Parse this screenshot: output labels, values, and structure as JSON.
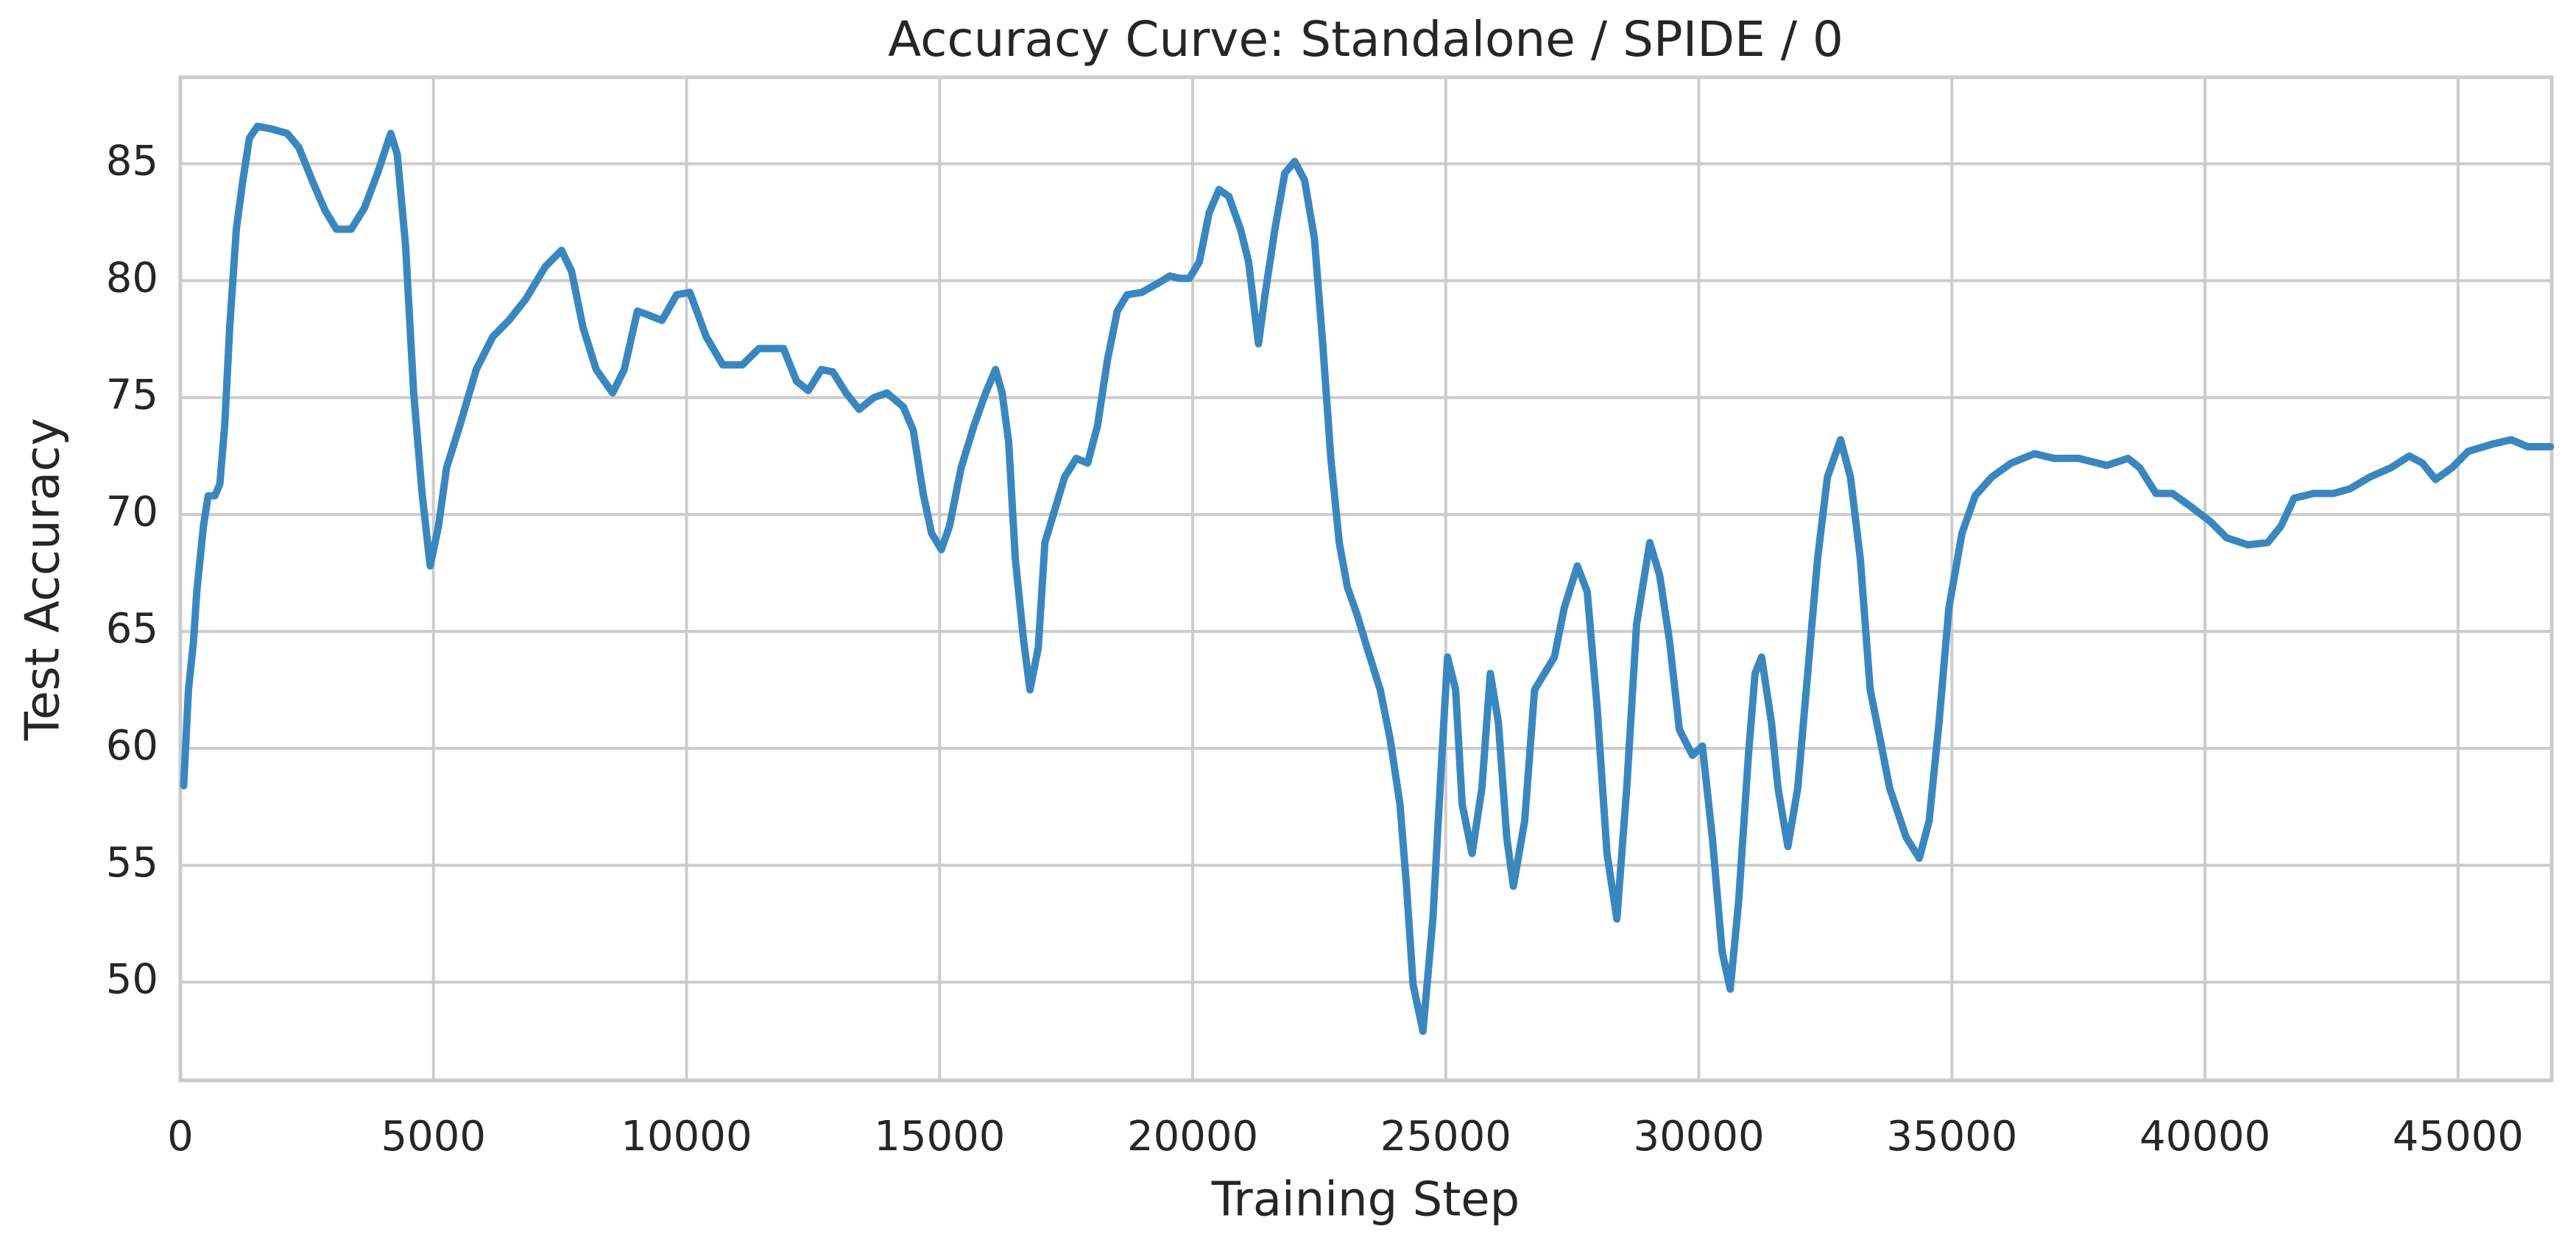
{
  "chart_data": {
    "type": "line",
    "title": "Accuracy Curve: Standalone / SPIDE / 0",
    "x_label": "Training Step",
    "y_label": "Test Accuracy",
    "grid": true,
    "xlim": [
      0,
      46850
    ],
    "ylim": [
      45.8,
      88.7
    ],
    "xticks": [
      0,
      5000,
      10000,
      15000,
      20000,
      25000,
      30000,
      35000,
      40000,
      45000
    ],
    "yticks": [
      50,
      55,
      60,
      65,
      70,
      75,
      80,
      85
    ],
    "series": [
      {
        "color": "#3a87c0",
        "x": [
          65,
          160,
          260,
          325,
          455,
          550,
          680,
          780,
          875,
          975,
          1105,
          1235,
          1365,
          1525,
          1785,
          2110,
          2340,
          2600,
          2860,
          3085,
          3375,
          3635,
          3895,
          4155,
          4285,
          4450,
          4610,
          4775,
          4935,
          5100,
          5260,
          5520,
          5845,
          6170,
          6490,
          6820,
          7210,
          7530,
          7730,
          7955,
          8215,
          8540,
          8770,
          9030,
          9285,
          9515,
          9805,
          10065,
          10390,
          10715,
          11105,
          11430,
          11690,
          11915,
          12175,
          12405,
          12665,
          12890,
          13150,
          13410,
          13700,
          13960,
          14285,
          14480,
          14675,
          14840,
          15035,
          15195,
          15425,
          15680,
          15910,
          16105,
          16235,
          16365,
          16495,
          16660,
          16785,
          16950,
          17080,
          17275,
          17470,
          17700,
          17925,
          18120,
          18315,
          18510,
          18705,
          18995,
          19320,
          19550,
          19745,
          19935,
          20130,
          20325,
          20520,
          20715,
          20945,
          21105,
          21300,
          21430,
          21625,
          21820,
          22015,
          22210,
          22405,
          22570,
          22730,
          22895,
          23055,
          23250,
          23445,
          23705,
          23900,
          24095,
          24225,
          24355,
          24550,
          24745,
          24905,
          25035,
          25195,
          25325,
          25520,
          25715,
          25880,
          26040,
          26205,
          26335,
          26560,
          26755,
          26950,
          27145,
          27340,
          27600,
          27795,
          27990,
          28185,
          28380,
          28575,
          28770,
          29030,
          29225,
          29420,
          29615,
          29875,
          30070,
          30265,
          30460,
          30620,
          30785,
          30980,
          31110,
          31240,
          31435,
          31565,
          31760,
          31955,
          32150,
          32345,
          32540,
          32800,
          32995,
          33190,
          33385,
          33580,
          33770,
          34095,
          34355,
          34550,
          34745,
          34940,
          35200,
          35460,
          35785,
          36175,
          36630,
          37020,
          37505,
          38060,
          38480,
          38710,
          39030,
          39355,
          39680,
          40105,
          40430,
          40850,
          41240,
          41500,
          41760,
          42150,
          42540,
          42865,
          43255,
          43675,
          44035,
          44295,
          44555,
          44880,
          45200,
          45660,
          46050,
          46370,
          46825
        ],
        "values": [
          58.4,
          62.5,
          64.6,
          66.7,
          69.5,
          70.8,
          70.8,
          71.3,
          73.8,
          78.0,
          82.2,
          84.3,
          86.1,
          86.6,
          86.5,
          86.3,
          85.7,
          84.3,
          83.0,
          82.2,
          82.2,
          83.1,
          84.6,
          86.3,
          85.4,
          81.5,
          75.2,
          70.9,
          67.8,
          69.5,
          72.0,
          73.8,
          76.2,
          77.6,
          78.3,
          79.2,
          80.6,
          81.3,
          80.4,
          78.0,
          76.2,
          75.2,
          76.2,
          78.7,
          78.5,
          78.3,
          79.4,
          79.5,
          77.6,
          76.4,
          76.4,
          77.1,
          77.1,
          77.1,
          75.7,
          75.3,
          76.2,
          76.1,
          75.2,
          74.5,
          75.0,
          75.2,
          74.6,
          73.6,
          70.9,
          69.2,
          68.5,
          69.5,
          72.0,
          73.8,
          75.2,
          76.2,
          75.2,
          73.1,
          68.1,
          64.6,
          62.5,
          64.3,
          68.8,
          70.2,
          71.6,
          72.4,
          72.2,
          73.8,
          76.6,
          78.7,
          79.4,
          79.5,
          79.9,
          80.2,
          80.1,
          80.1,
          80.8,
          82.9,
          83.9,
          83.6,
          82.2,
          80.8,
          77.3,
          79.4,
          82.2,
          84.6,
          85.1,
          84.3,
          81.8,
          77.3,
          72.4,
          68.8,
          66.9,
          65.7,
          64.3,
          62.5,
          60.4,
          57.6,
          54.1,
          49.9,
          47.9,
          52.7,
          59.0,
          63.9,
          62.5,
          57.6,
          55.5,
          58.3,
          63.2,
          61.1,
          56.2,
          54.1,
          56.9,
          62.5,
          63.2,
          63.9,
          66.0,
          67.8,
          66.7,
          61.8,
          55.5,
          52.7,
          58.3,
          65.3,
          68.8,
          67.4,
          64.6,
          60.8,
          59.7,
          60.1,
          56.2,
          51.3,
          49.7,
          53.4,
          59.7,
          63.2,
          63.9,
          61.1,
          58.3,
          55.8,
          58.3,
          63.2,
          68.1,
          71.6,
          73.2,
          71.6,
          68.1,
          62.5,
          60.4,
          58.3,
          56.2,
          55.3,
          56.9,
          61.1,
          66.0,
          69.2,
          70.8,
          71.6,
          72.2,
          72.6,
          72.4,
          72.4,
          72.1,
          72.4,
          72.0,
          70.9,
          70.9,
          70.4,
          69.7,
          69.0,
          68.7,
          68.8,
          69.5,
          70.7,
          70.9,
          70.9,
          71.1,
          71.6,
          72.0,
          72.5,
          72.2,
          71.5,
          72.0,
          72.7,
          73.0,
          73.2,
          72.9,
          72.9
        ]
      }
    ]
  }
}
